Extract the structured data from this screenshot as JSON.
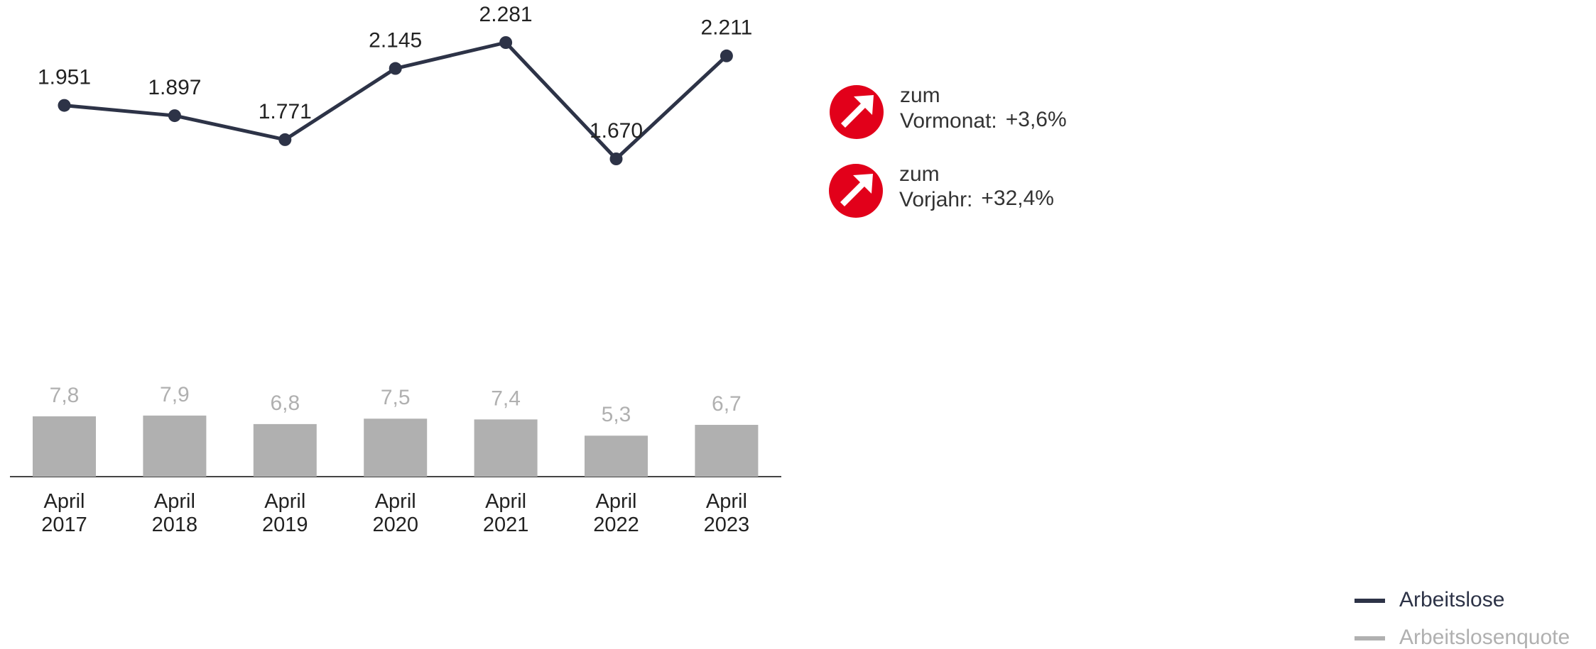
{
  "chart_data": {
    "type": "line-bar",
    "categories": [
      "April 2017",
      "April 2018",
      "April 2019",
      "April 2020",
      "April 2021",
      "April 2022",
      "April 2023"
    ],
    "series": [
      {
        "name": "Arbeitslose",
        "color": "#2d3347",
        "type": "line",
        "values": [
          1951,
          1897,
          1771,
          2145,
          2281,
          1670,
          2211
        ],
        "value_labels": [
          "1.951",
          "1.897",
          "1.771",
          "2.145",
          "2.281",
          "1.670",
          "2.211"
        ]
      },
      {
        "name": "Arbeitslosenquote",
        "color": "#b0b0b0",
        "type": "bar",
        "values": [
          7.8,
          7.9,
          6.8,
          7.5,
          7.4,
          5.3,
          6.7
        ],
        "value_labels": [
          "7,8",
          "7,9",
          "6,8",
          "7,5",
          "7,4",
          "5,3",
          "6,7"
        ]
      }
    ],
    "indicators": [
      {
        "label": "zum Vormonat:",
        "value": "+3,6%",
        "color": "#e2001a"
      },
      {
        "label": "zum Vorjahr:",
        "value": "+32,4%",
        "color": "#e2001a"
      }
    ],
    "legend": "bottom-right"
  }
}
